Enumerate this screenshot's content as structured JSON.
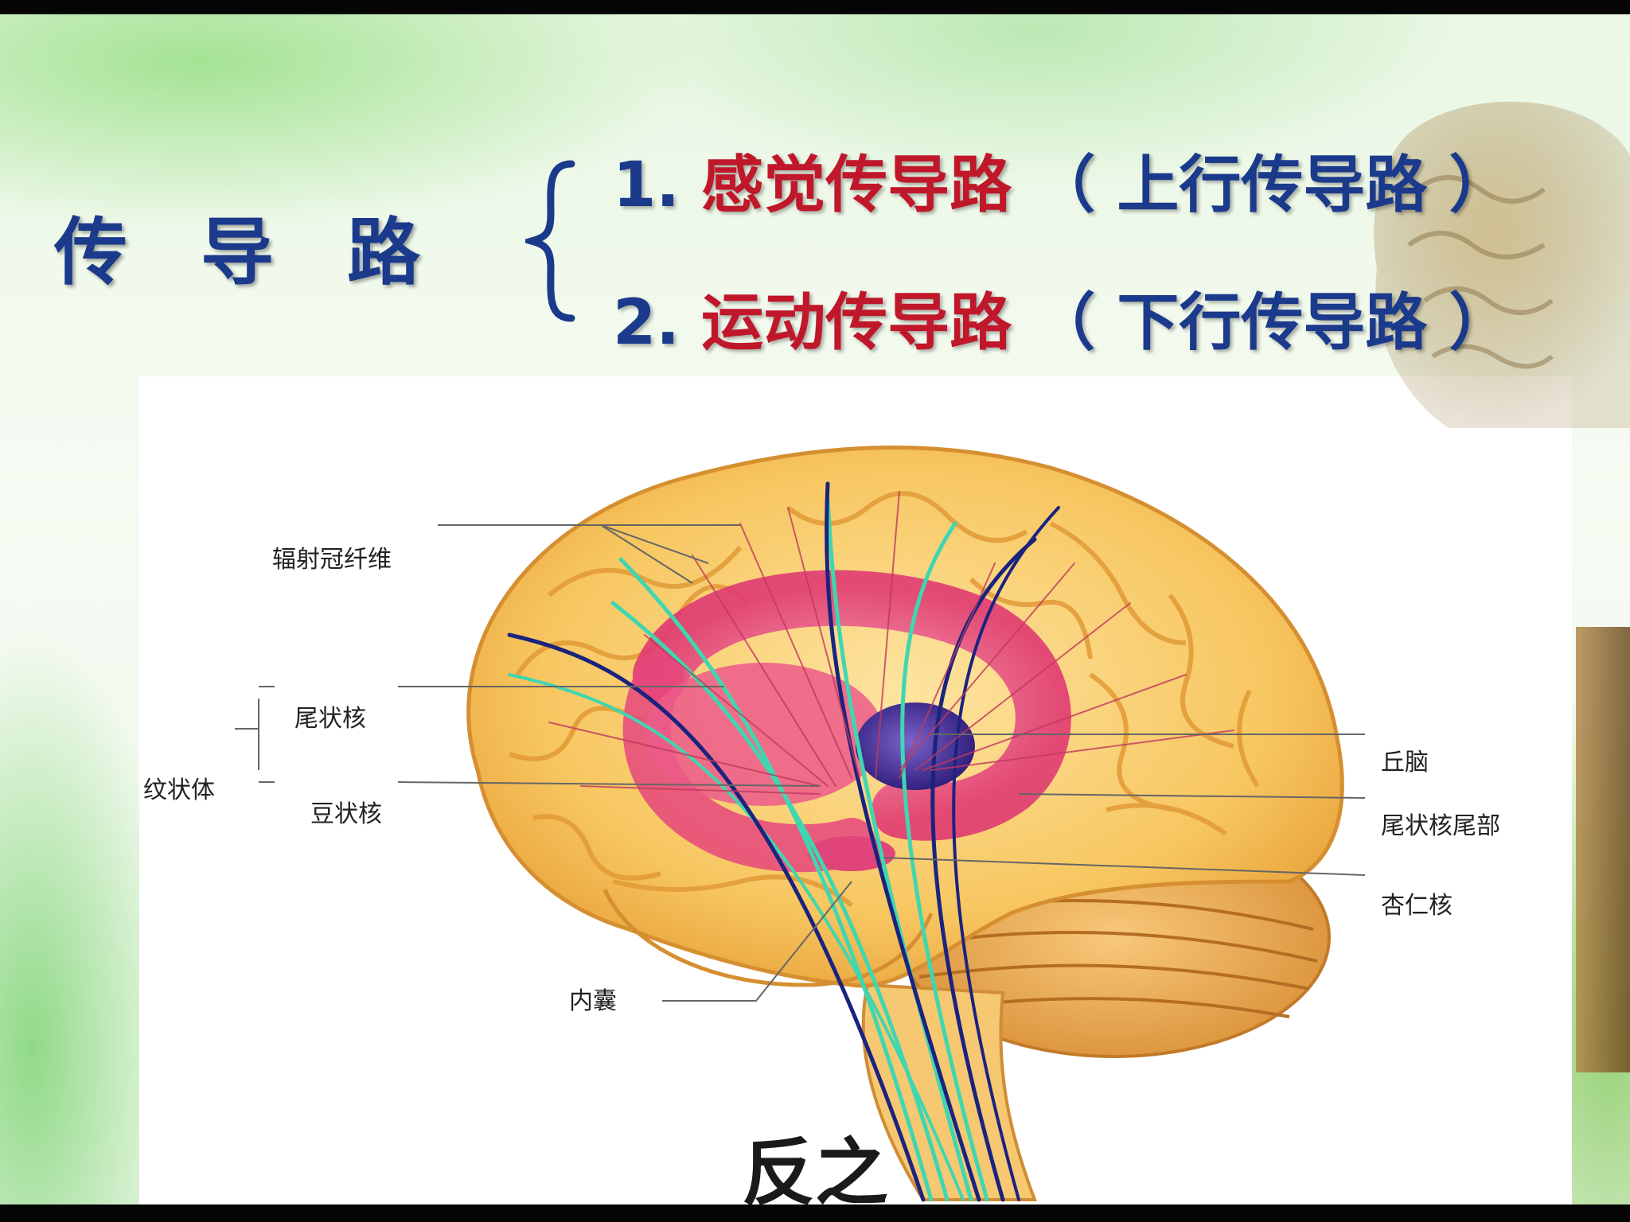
{
  "title": "传 导 路",
  "items": [
    {
      "num": "1.",
      "key": "感觉传导路",
      "paren": "（ 上行传导路 ）"
    },
    {
      "num": "2.",
      "key": "运动传导路",
      "paren": "（ 下行传导路 ）"
    }
  ],
  "labels": {
    "radiation": "辐射冠纤维",
    "caudate": "尾状核",
    "striatum": "纹状体",
    "lentiform": "豆状核",
    "internal_capsule": "内囊",
    "thalamus": "丘脑",
    "caudate_tail": "尾状核尾部",
    "amygdala": "杏仁核"
  },
  "subtitle": "反之",
  "colors": {
    "title_blue": "#1b3a8c",
    "key_red": "#c0172a",
    "brain_orange": "#f5b84a",
    "striatum_pink": "#e8457a",
    "thalamus_purple": "#4a2f9a",
    "fiber_teal": "#3fd6b0",
    "fiber_navy": "#1a237e"
  }
}
